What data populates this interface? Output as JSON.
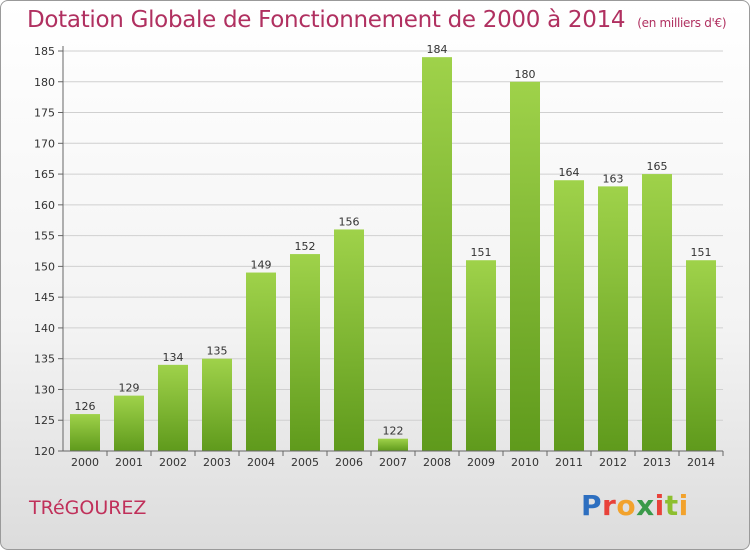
{
  "header": {
    "title": "Dotation Globale de Fonctionnement de 2000 à 2014",
    "unit": "(en milliers d'€)"
  },
  "commune": "TRéGOUREZ",
  "logo": {
    "letters": [
      "P",
      "r",
      "o",
      "x",
      "i",
      "t",
      "i"
    ],
    "text": "Proxiti"
  },
  "colors": {
    "bar_light": "#9fd24a",
    "bar_dark": "#5f9a1c",
    "title": "#b03060",
    "grid": "#d0d0d0"
  },
  "chart_data": {
    "type": "bar",
    "title": "Dotation Globale de Fonctionnement de 2000 à 2014",
    "subtitle": "(en milliers d'€)",
    "xlabel": "",
    "ylabel": "",
    "ylim": [
      120,
      185
    ],
    "yticks": [
      120,
      125,
      130,
      135,
      140,
      145,
      150,
      155,
      160,
      165,
      170,
      175,
      180,
      185
    ],
    "grid": true,
    "categories": [
      "2000",
      "2001",
      "2002",
      "2003",
      "2004",
      "2005",
      "2006",
      "2007",
      "2008",
      "2009",
      "2010",
      "2011",
      "2012",
      "2013",
      "2014"
    ],
    "values": [
      126,
      129,
      134,
      135,
      149,
      152,
      156,
      122,
      184,
      151,
      180,
      164,
      163,
      165,
      151
    ]
  }
}
